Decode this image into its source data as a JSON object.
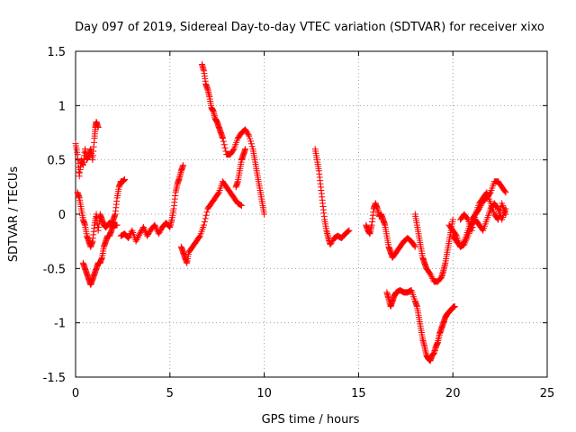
{
  "chart_data": {
    "type": "scatter",
    "title": "Day 097 of 2019, Sidereal Day-to-day VTEC variation (SDTVAR) for receiver xixo",
    "xlabel": "GPS time / hours",
    "ylabel": "SDTVAR / TECUs",
    "xlim": [
      0,
      25
    ],
    "ylim": [
      -1.5,
      1.5
    ],
    "xticks": [
      0,
      5,
      10,
      15,
      20,
      25
    ],
    "xtick_labels": [
      "0",
      "5",
      "10",
      "15",
      "20",
      "25"
    ],
    "yticks": [
      -1.5,
      -1,
      -0.5,
      0,
      0.5,
      1,
      1.5
    ],
    "ytick_labels": [
      "-1.5",
      "-1",
      "-0.5",
      "0",
      "0.5",
      "1",
      "1.5"
    ],
    "grid": true,
    "marker": "+",
    "marker_color": "#ff0000",
    "series": [
      {
        "x": [
          0.0,
          0.1,
          0.2,
          0.3,
          0.4,
          0.5,
          0.6,
          0.7,
          0.8,
          0.9,
          1.0,
          1.05,
          1.1,
          1.2
        ],
        "y": [
          0.65,
          0.55,
          0.35,
          0.5,
          0.45,
          0.6,
          0.5,
          0.55,
          0.6,
          0.5,
          0.7,
          0.8,
          0.85,
          0.8
        ]
      },
      {
        "x": [
          0.1,
          0.2,
          0.3,
          0.4,
          0.5,
          0.6,
          0.7,
          0.8,
          0.9,
          1.0,
          1.1,
          1.2,
          1.3,
          1.4,
          1.5,
          1.6,
          1.7,
          1.8,
          1.9,
          2.0,
          2.1,
          2.2,
          2.3,
          2.4,
          2.5,
          2.6
        ],
        "y": [
          0.2,
          0.15,
          0.05,
          -0.05,
          -0.1,
          -0.2,
          -0.25,
          -0.3,
          -0.25,
          -0.1,
          0.0,
          -0.15,
          0.0,
          -0.05,
          -0.1,
          -0.12,
          -0.1,
          -0.08,
          -0.1,
          -0.05,
          0.0,
          0.15,
          0.25,
          0.3,
          0.3,
          0.32
        ]
      },
      {
        "x": [
          0.4,
          0.5,
          0.6,
          0.7,
          0.8,
          0.9,
          1.0,
          1.1,
          1.2,
          1.3,
          1.4,
          1.5,
          1.6,
          1.7,
          1.8,
          1.9,
          2.0,
          2.1,
          2.2
        ],
        "y": [
          -0.45,
          -0.5,
          -0.55,
          -0.6,
          -0.65,
          -0.6,
          -0.55,
          -0.5,
          -0.45,
          -0.45,
          -0.4,
          -0.3,
          -0.25,
          -0.2,
          -0.2,
          -0.15,
          -0.1,
          -0.1,
          -0.1
        ]
      },
      {
        "x": [
          2.4,
          2.6,
          2.8,
          3.0,
          3.2,
          3.4,
          3.6,
          3.8,
          4.0,
          4.2,
          4.4,
          4.6,
          4.8,
          5.0,
          5.1,
          5.2,
          5.3,
          5.4,
          5.5,
          5.6,
          5.7
        ],
        "y": [
          -0.2,
          -0.18,
          -0.22,
          -0.15,
          -0.25,
          -0.18,
          -0.12,
          -0.2,
          -0.14,
          -0.1,
          -0.18,
          -0.12,
          -0.08,
          -0.12,
          -0.05,
          0.05,
          0.2,
          0.28,
          0.33,
          0.4,
          0.45
        ]
      },
      {
        "x": [
          5.6,
          5.7,
          5.8,
          5.9,
          6.0,
          6.2,
          6.4,
          6.6,
          6.8,
          7.0,
          7.2,
          7.4,
          7.6,
          7.8,
          8.0,
          8.2,
          8.4,
          8.6,
          8.8
        ],
        "y": [
          -0.3,
          -0.35,
          -0.4,
          -0.45,
          -0.35,
          -0.3,
          -0.25,
          -0.2,
          -0.1,
          0.05,
          0.1,
          0.15,
          0.2,
          0.3,
          0.25,
          0.2,
          0.15,
          0.1,
          0.08
        ]
      },
      {
        "x": [
          6.7,
          6.8,
          6.9,
          7.0,
          7.1,
          7.2,
          7.3,
          7.4,
          7.5,
          7.6,
          7.7,
          7.8,
          8.0,
          8.2,
          8.4,
          8.6,
          8.8,
          9.0,
          9.2,
          9.4,
          9.5,
          9.6,
          9.7,
          9.8,
          9.9,
          10.0
        ],
        "y": [
          1.38,
          1.32,
          1.2,
          1.15,
          1.08,
          0.98,
          0.95,
          0.88,
          0.85,
          0.8,
          0.75,
          0.7,
          0.55,
          0.55,
          0.6,
          0.7,
          0.75,
          0.78,
          0.72,
          0.6,
          0.5,
          0.4,
          0.3,
          0.2,
          0.1,
          0.0
        ]
      },
      {
        "x": [
          8.5,
          8.6,
          8.7,
          8.8,
          8.9,
          9.0
        ],
        "y": [
          0.25,
          0.3,
          0.4,
          0.5,
          0.55,
          0.6
        ]
      },
      {
        "x": [
          12.7,
          12.8,
          12.9,
          13.0,
          13.1,
          13.2,
          13.3,
          13.4,
          13.5,
          13.7,
          13.9,
          14.1,
          14.3,
          14.5
        ],
        "y": [
          0.6,
          0.5,
          0.4,
          0.25,
          0.1,
          -0.05,
          -0.15,
          -0.22,
          -0.28,
          -0.22,
          -0.2,
          -0.22,
          -0.18,
          -0.15
        ]
      },
      {
        "x": [
          15.4,
          15.5,
          15.6,
          15.7,
          15.8,
          15.9,
          16.0,
          16.1,
          16.2,
          16.3,
          16.4,
          16.5,
          16.6,
          16.7,
          16.8,
          17.0,
          17.2,
          17.4,
          17.6,
          17.8,
          18.0
        ],
        "y": [
          -0.1,
          -0.15,
          -0.18,
          -0.1,
          0.05,
          0.1,
          0.05,
          -0.02,
          0.0,
          -0.05,
          -0.1,
          -0.2,
          -0.3,
          -0.35,
          -0.4,
          -0.35,
          -0.3,
          -0.25,
          -0.22,
          -0.25,
          -0.3
        ]
      },
      {
        "x": [
          16.5,
          16.6,
          16.7,
          16.8,
          16.9,
          17.0,
          17.2,
          17.4,
          17.6,
          17.8,
          18.0,
          18.1,
          18.2,
          18.3,
          18.4,
          18.5,
          18.6,
          18.7,
          18.8,
          18.9,
          19.0,
          19.1,
          19.2,
          19.3,
          19.4,
          19.5,
          19.6,
          19.7,
          19.8,
          19.9,
          20.0,
          20.1
        ],
        "y": [
          -0.72,
          -0.78,
          -0.85,
          -0.8,
          -0.75,
          -0.72,
          -0.7,
          -0.72,
          -0.72,
          -0.7,
          -0.8,
          -0.85,
          -0.95,
          -1.05,
          -1.15,
          -1.22,
          -1.3,
          -1.33,
          -1.35,
          -1.3,
          -1.28,
          -1.22,
          -1.18,
          -1.1,
          -1.05,
          -1.0,
          -0.95,
          -0.92,
          -0.9,
          -0.88,
          -0.86,
          -0.85
        ]
      },
      {
        "x": [
          18.0,
          18.1,
          18.2,
          18.3,
          18.4,
          18.5,
          18.6,
          18.8,
          19.0,
          19.2,
          19.4,
          19.5,
          19.6,
          19.7,
          19.8,
          19.9,
          20.0
        ],
        "y": [
          0.0,
          -0.1,
          -0.2,
          -0.3,
          -0.4,
          -0.45,
          -0.5,
          -0.55,
          -0.62,
          -0.62,
          -0.58,
          -0.52,
          -0.45,
          -0.35,
          -0.25,
          -0.15,
          -0.05
        ]
      },
      {
        "x": [
          19.8,
          20.0,
          20.2,
          20.4,
          20.6,
          20.8,
          21.0,
          21.2,
          21.4,
          21.6,
          21.8,
          22.0,
          22.2,
          22.4,
          22.6,
          22.8
        ],
        "y": [
          -0.1,
          -0.15,
          -0.2,
          -0.3,
          -0.25,
          -0.15,
          -0.05,
          0.0,
          0.05,
          0.12,
          0.15,
          0.2,
          0.3,
          0.3,
          0.25,
          0.2
        ]
      },
      {
        "x": [
          20.0,
          20.2,
          20.4,
          20.6,
          20.8,
          21.0,
          21.2,
          21.4,
          21.6,
          21.8,
          22.0,
          22.2,
          22.4,
          22.6,
          22.8
        ],
        "y": [
          -0.2,
          -0.25,
          -0.3,
          -0.28,
          -0.2,
          -0.1,
          -0.05,
          -0.1,
          -0.15,
          -0.05,
          0.05,
          0.1,
          0.05,
          -0.05,
          0.05
        ]
      },
      {
        "x": [
          20.4,
          20.6,
          20.8,
          21.0,
          21.2,
          21.4,
          21.6,
          21.8,
          22.0,
          22.2,
          22.4,
          22.6,
          22.8
        ],
        "y": [
          -0.05,
          0.0,
          -0.05,
          -0.15,
          0.0,
          0.1,
          0.15,
          0.2,
          0.1,
          0.0,
          -0.05,
          0.1,
          0.0
        ]
      }
    ]
  }
}
